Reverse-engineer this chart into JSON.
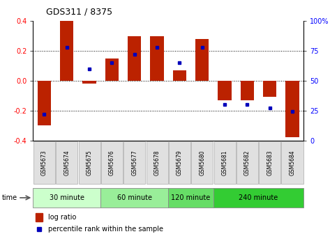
{
  "title": "GDS311 / 8375",
  "samples": [
    "GSM5673",
    "GSM5674",
    "GSM5675",
    "GSM5676",
    "GSM5677",
    "GSM5678",
    "GSM5679",
    "GSM5680",
    "GSM5681",
    "GSM5682",
    "GSM5683",
    "GSM5684"
  ],
  "log_ratio": [
    -0.3,
    0.4,
    -0.02,
    0.15,
    0.3,
    0.3,
    0.07,
    0.28,
    -0.13,
    -0.13,
    -0.11,
    -0.38
  ],
  "percentile": [
    22,
    78,
    60,
    65,
    72,
    78,
    65,
    78,
    30,
    30,
    27,
    24
  ],
  "groups": [
    {
      "label": "30 minute",
      "start": 0,
      "end": 3,
      "color": "#ccffcc"
    },
    {
      "label": "60 minute",
      "start": 3,
      "end": 6,
      "color": "#99ee99"
    },
    {
      "label": "120 minute",
      "start": 6,
      "end": 8,
      "color": "#66dd66"
    },
    {
      "label": "240 minute",
      "start": 8,
      "end": 12,
      "color": "#33cc33"
    }
  ],
  "bar_color": "#bb2200",
  "dot_color": "#0000bb",
  "ylim": [
    -0.4,
    0.4
  ],
  "yticks_left": [
    -0.4,
    -0.2,
    0.0,
    0.2,
    0.4
  ],
  "right_yticks": [
    0,
    25,
    50,
    75,
    100
  ],
  "dotted_lines": [
    -0.2,
    0.0,
    0.2
  ],
  "background_color": "#ffffff",
  "bar_width": 0.6
}
